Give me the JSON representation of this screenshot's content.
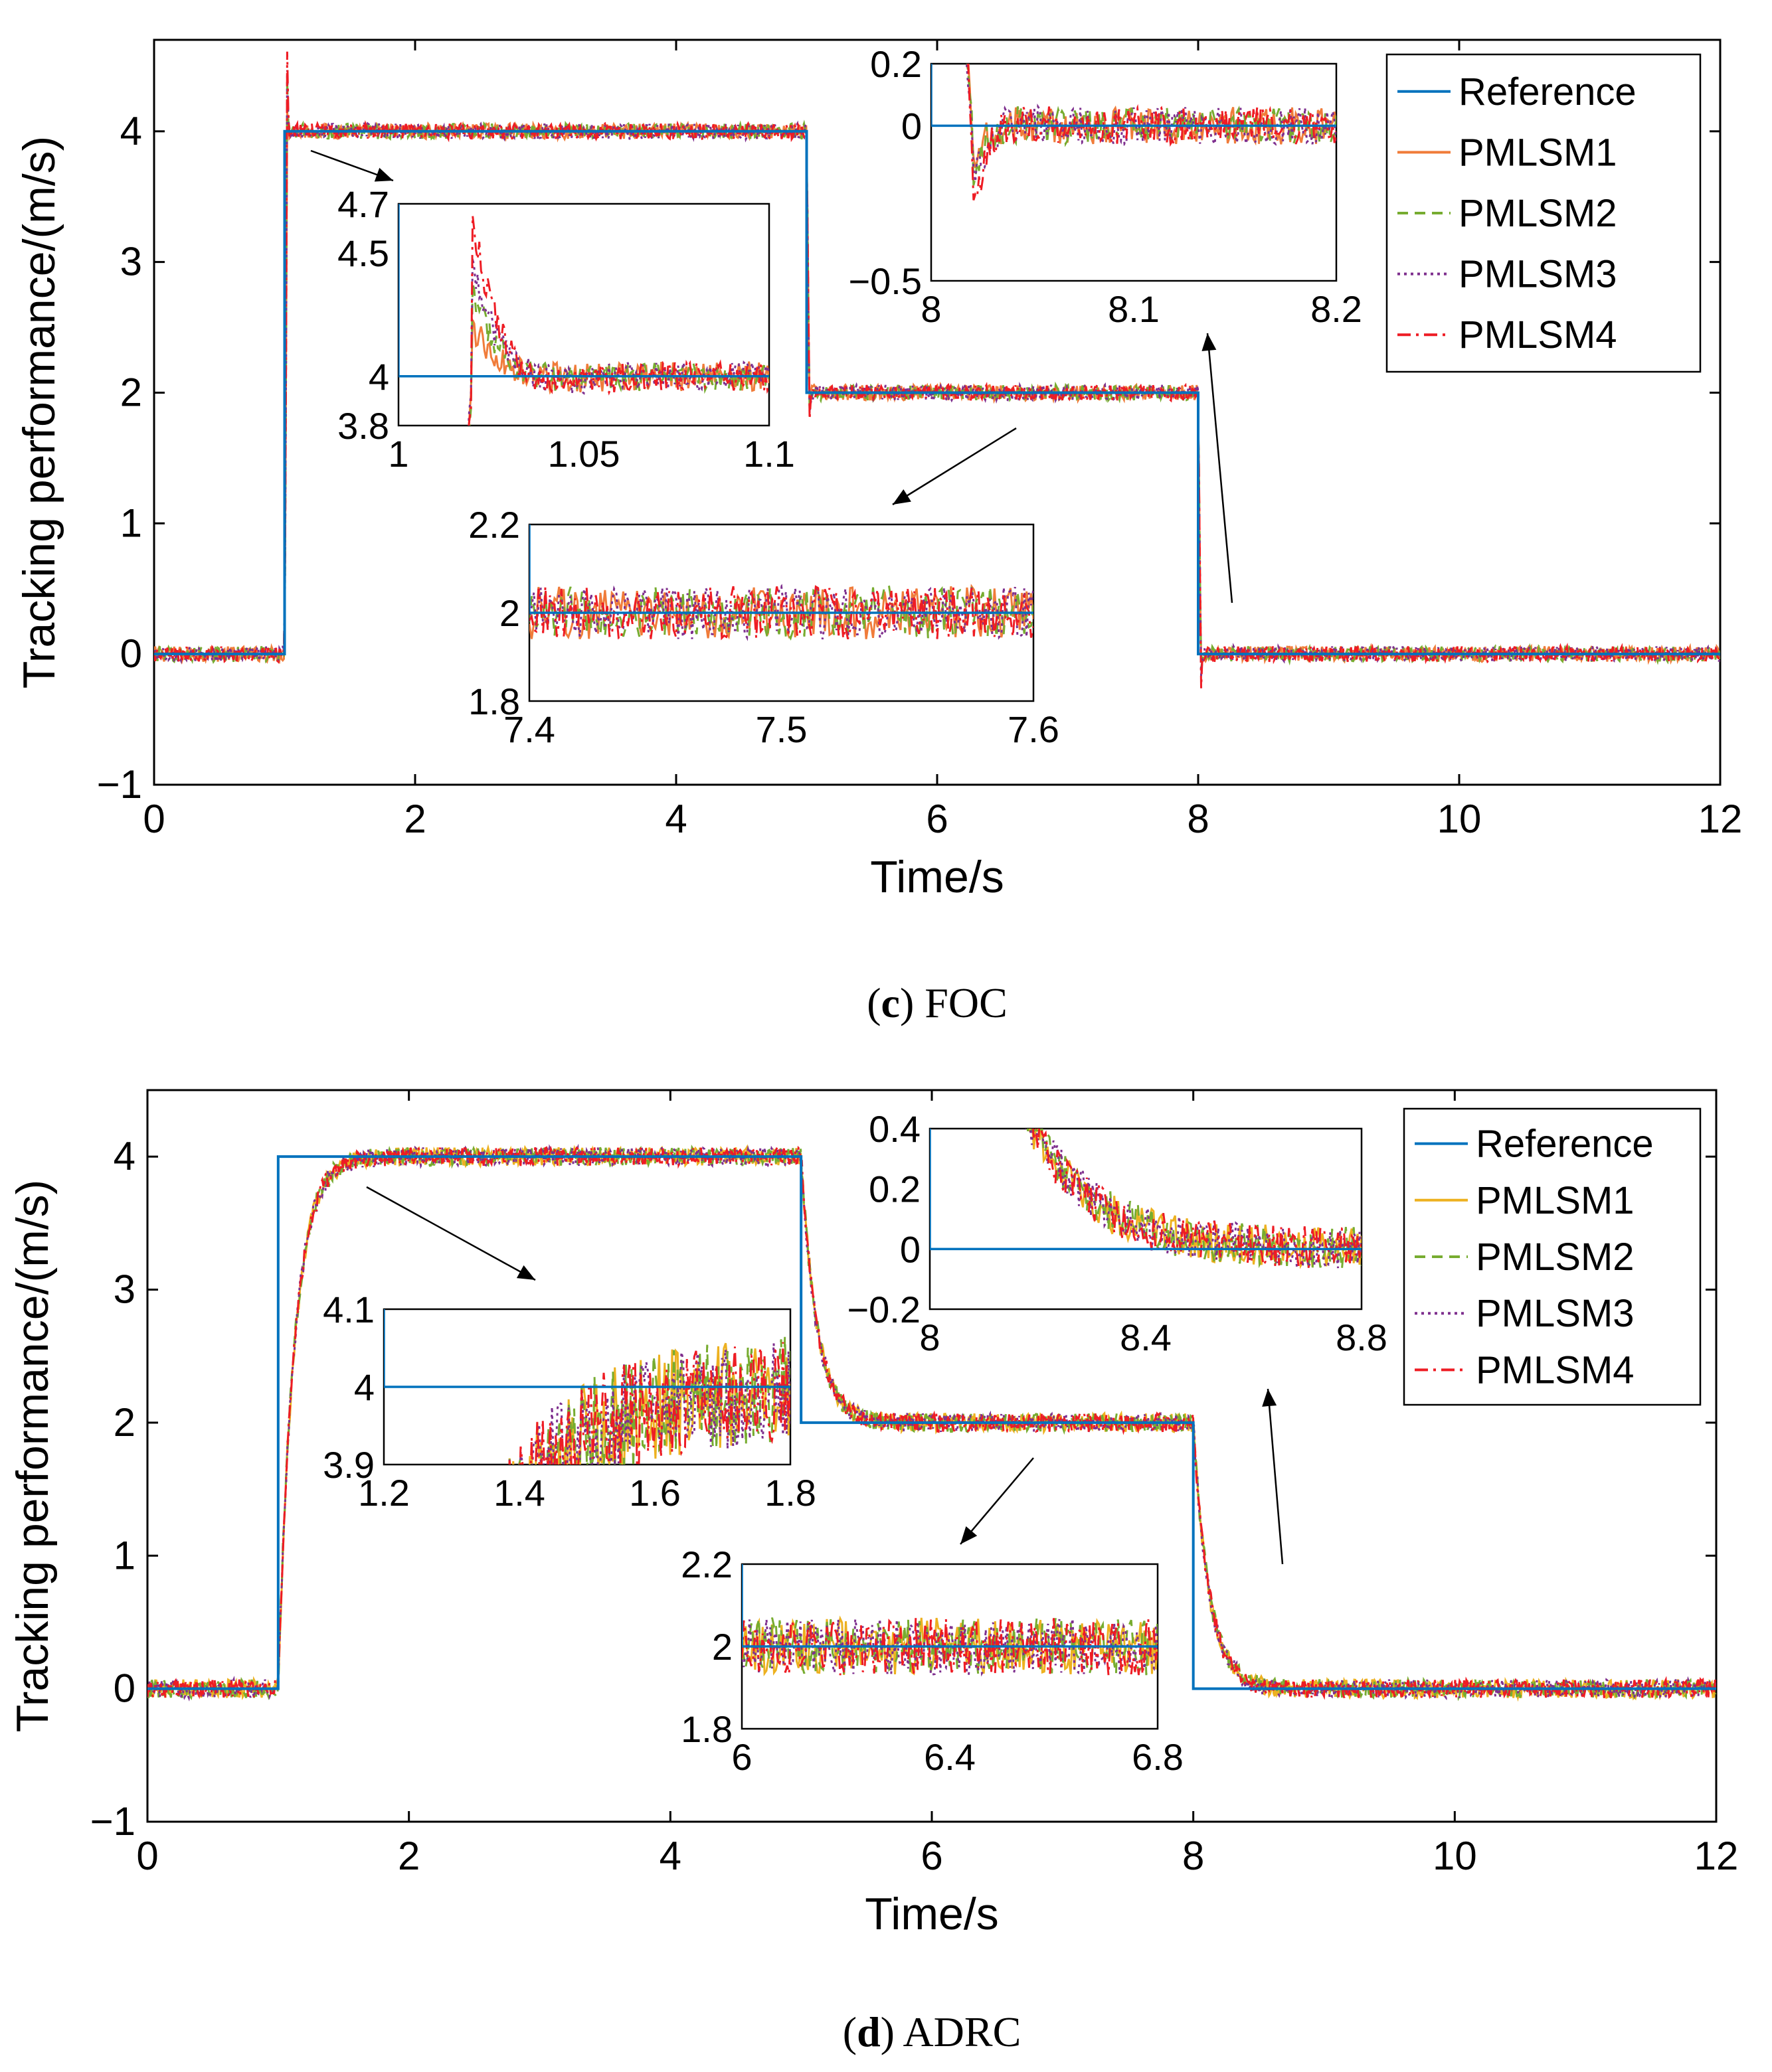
{
  "chart_data": [
    {
      "type": "line",
      "caption_letter": "c",
      "caption_text": "FOC",
      "xlabel": "Time/s",
      "ylabel": "Tracking performance/(m/s)",
      "xlim": [
        0,
        12
      ],
      "ylim": [
        -1,
        4.7
      ],
      "xticks": [
        0,
        2,
        4,
        6,
        8,
        10,
        12
      ],
      "yticks": [
        -1,
        0,
        1,
        2,
        3,
        4
      ],
      "legend": {
        "position": "top-right",
        "entries": [
          "Reference",
          "PMLSM1",
          "PMLSM2",
          "PMLSM3",
          "PMLSM4"
        ]
      },
      "reference_steps": [
        [
          0,
          0
        ],
        [
          1,
          4
        ],
        [
          5,
          2
        ],
        [
          8,
          0
        ],
        [
          12,
          0
        ]
      ],
      "response_model": "step_tracking_with_overshoot",
      "overshoot_peaks": {
        "PMLSM1": 4.2,
        "PMLSM2": 4.35,
        "PMLSM3": 4.45,
        "PMLSM4": 4.62
      },
      "noise_amplitude": 0.06,
      "insets": [
        {
          "xlim": [
            1,
            1.1
          ],
          "ylim": [
            3.8,
            4.7
          ],
          "xticks": [
            "1",
            "1.05",
            "1.1"
          ],
          "yticks": [
            "3.8",
            "4",
            "4.5",
            "4.7"
          ]
        },
        {
          "xlim": [
            7.4,
            7.6
          ],
          "ylim": [
            1.8,
            2.2
          ],
          "xticks": [
            "7.4",
            "7.5",
            "7.6"
          ],
          "yticks": [
            "1.8",
            "2",
            "2.2"
          ]
        },
        {
          "xlim": [
            8,
            8.2
          ],
          "ylim": [
            -0.5,
            0.2
          ],
          "xticks": [
            "8",
            "8.1",
            "8.2"
          ],
          "yticks": [
            "−0.5",
            "0",
            "0.2"
          ]
        }
      ]
    },
    {
      "type": "line",
      "caption_letter": "d",
      "caption_text": "ADRC",
      "xlabel": "Time/s",
      "ylabel": "Tracking performance/(m/s)",
      "xlim": [
        0,
        12
      ],
      "ylim": [
        -1,
        4.5
      ],
      "xticks": [
        0,
        2,
        4,
        6,
        8,
        10,
        12
      ],
      "yticks": [
        -1,
        0,
        1,
        2,
        3,
        4
      ],
      "legend": {
        "position": "top-right",
        "entries": [
          "Reference",
          "PMLSM1",
          "PMLSM2",
          "PMLSM3",
          "PMLSM4"
        ]
      },
      "reference_steps": [
        [
          0,
          0
        ],
        [
          1,
          4
        ],
        [
          5,
          2
        ],
        [
          8,
          0
        ],
        [
          12,
          0
        ]
      ],
      "response_model": "first_order_lag",
      "time_constant": 0.12,
      "noise_amplitude": 0.07,
      "insets": [
        {
          "xlim": [
            1.2,
            1.8
          ],
          "ylim": [
            3.9,
            4.1
          ],
          "xticks": [
            "1.2",
            "1.4",
            "1.6",
            "1.8"
          ],
          "yticks": [
            "3.9",
            "4",
            "4.1"
          ]
        },
        {
          "xlim": [
            6,
            6.8
          ],
          "ylim": [
            1.8,
            2.2
          ],
          "xticks": [
            "6",
            "6.4",
            "6.8"
          ],
          "yticks": [
            "1.8",
            "2",
            "2.2"
          ]
        },
        {
          "xlim": [
            8,
            8.8
          ],
          "ylim": [
            -0.2,
            0.4
          ],
          "xticks": [
            "8",
            "8.4",
            "8.8"
          ],
          "yticks": [
            "−0.2",
            "0",
            "0.2",
            "0.4"
          ]
        }
      ]
    }
  ],
  "colors": {
    "Reference": "#0072BD",
    "PMLSM1_c": "#F07C3A",
    "PMLSM1_d": "#EDB120",
    "PMLSM2": "#77AC30",
    "PMLSM3": "#7E2F8E",
    "PMLSM4": "#EE1C24"
  }
}
